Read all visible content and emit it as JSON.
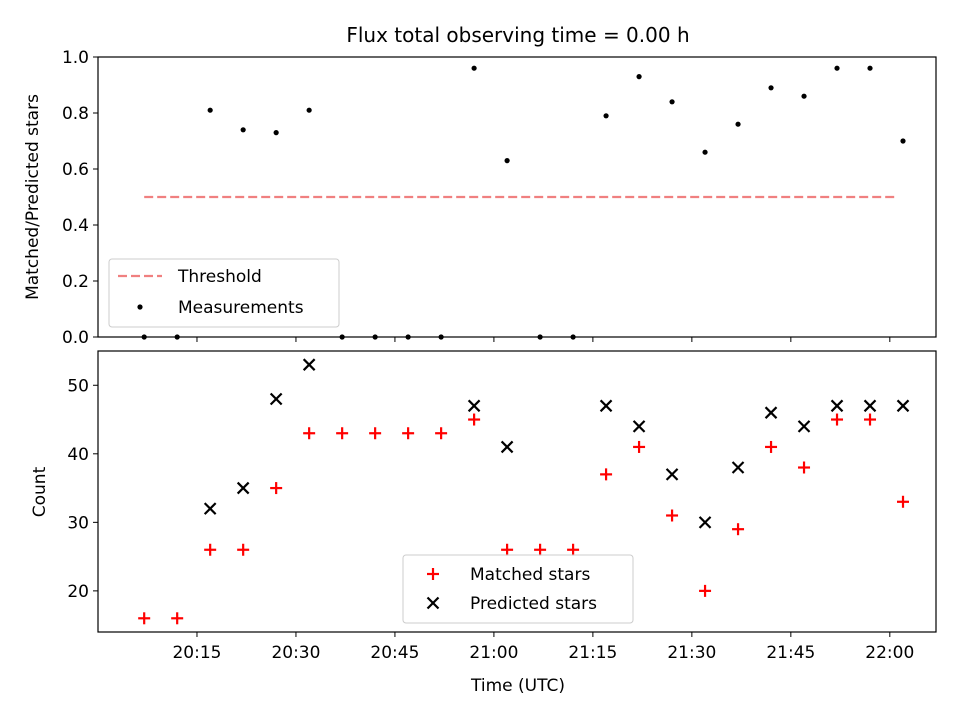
{
  "figure": {
    "title": "Flux total observing time = 0.00 h"
  },
  "chart_data": [
    {
      "type": "scatter",
      "panel": "top",
      "ylabel": "Matched/Predicted stars",
      "ylim": [
        0,
        1.0
      ],
      "yticks": [
        "0.0",
        "0.2",
        "0.4",
        "0.6",
        "0.8",
        "1.0"
      ],
      "legend_placement": "lower-left",
      "series": [
        {
          "name": "Threshold",
          "kind": "line",
          "style": "dashed",
          "color": "#f08080",
          "x": [
            "20:07",
            "22:01"
          ],
          "y": [
            0.5,
            0.5
          ]
        },
        {
          "name": "Measurements",
          "kind": "points",
          "color": "#000000",
          "x": [
            "20:07",
            "20:12",
            "20:17",
            "20:22",
            "20:27",
            "20:32",
            "20:37",
            "20:42",
            "20:47",
            "20:52",
            "20:57",
            "21:02",
            "21:07",
            "21:12",
            "21:17",
            "21:22",
            "21:27",
            "21:32",
            "21:37",
            "21:42",
            "21:47",
            "21:52",
            "21:57",
            "22:02"
          ],
          "y": [
            0.0,
            0.0,
            0.81,
            0.74,
            0.73,
            0.81,
            0.0,
            0.0,
            0.0,
            0.0,
            0.96,
            0.63,
            0.0,
            0.0,
            0.79,
            0.93,
            0.84,
            0.66,
            0.76,
            0.89,
            0.86,
            0.96,
            0.96,
            0.7
          ]
        }
      ]
    },
    {
      "type": "scatter",
      "panel": "bottom",
      "xlabel": "Time (UTC)",
      "ylabel": "Count",
      "ylim": [
        14,
        55
      ],
      "yticks": [
        "20",
        "30",
        "40",
        "50"
      ],
      "xticks": [
        "20:15",
        "20:30",
        "20:45",
        "21:00",
        "21:15",
        "21:30",
        "21:45",
        "22:00"
      ],
      "xlim": [
        "20:00",
        "22:07"
      ],
      "legend_placement": "lower-center",
      "series": [
        {
          "name": "Matched stars",
          "marker": "plus",
          "color": "#ff0000",
          "x": [
            "20:07",
            "20:12",
            "20:17",
            "20:22",
            "20:27",
            "20:32",
            "20:37",
            "20:42",
            "20:47",
            "20:52",
            "20:57",
            "21:02",
            "21:07",
            "21:12",
            "21:17",
            "21:22",
            "21:27",
            "21:32",
            "21:37",
            "21:42",
            "21:47",
            "21:52",
            "21:57",
            "22:02"
          ],
          "y": [
            16,
            16,
            26,
            26,
            35,
            43,
            43,
            43,
            43,
            43,
            45,
            26,
            26,
            26,
            37,
            41,
            31,
            20,
            29,
            41,
            38,
            45,
            45,
            33
          ]
        },
        {
          "name": "Predicted stars",
          "marker": "x",
          "color": "#000000",
          "x": [
            "20:17",
            "20:22",
            "20:27",
            "20:32",
            "20:57",
            "21:02",
            "21:17",
            "21:22",
            "21:27",
            "21:32",
            "21:37",
            "21:42",
            "21:47",
            "21:52",
            "21:57",
            "22:02"
          ],
          "y": [
            32,
            35,
            48,
            53,
            47,
            41,
            47,
            44,
            37,
            30,
            38,
            46,
            44,
            47,
            47,
            47
          ]
        }
      ]
    }
  ]
}
